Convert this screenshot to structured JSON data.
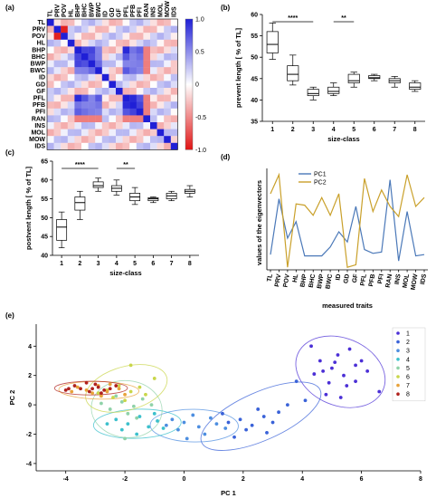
{
  "chart_data": [
    {
      "panel": "(a)",
      "type": "heatmap",
      "labels": [
        "TL",
        "PRV",
        "POV",
        "HL",
        "BHP",
        "BHC",
        "BWP",
        "BWC",
        "ID",
        "GD",
        "GF",
        "PFL",
        "PFB",
        "PFI",
        "RAN",
        "INS",
        "MOL",
        "MOW",
        "IDS"
      ],
      "colorbar_ticks": [
        "1.0",
        "0.5",
        "0",
        "-0.5",
        "-1.0"
      ],
      "colorbar_range": [
        -1.0,
        1.0
      ],
      "colors": {
        "positive": "#1f1fd6",
        "zero": "#ffffff",
        "negative": "#e01414"
      }
    },
    {
      "panel": "(b)",
      "type": "boxplot",
      "xlabel": "size-class",
      "ylabel": "prevent length [ % of TL]",
      "categories": [
        "1",
        "2",
        "3",
        "4",
        "5",
        "6",
        "7",
        "8"
      ],
      "yticks": [
        "35",
        "40",
        "45",
        "50",
        "55",
        "60"
      ],
      "ylim": [
        35,
        60
      ],
      "boxes": [
        {
          "min": 49.5,
          "q1": 51,
          "median": 53,
          "q3": 56,
          "max": 58
        },
        {
          "min": 43.5,
          "q1": 44.5,
          "median": 46,
          "q3": 48,
          "max": 50.5
        },
        {
          "min": 40,
          "q1": 41,
          "median": 41.5,
          "q3": 42.5,
          "max": 43
        },
        {
          "min": 41,
          "q1": 41.5,
          "median": 42,
          "q3": 43,
          "max": 44
        },
        {
          "min": 43,
          "q1": 44,
          "median": 44.5,
          "q3": 46,
          "max": 46.5
        },
        {
          "min": 44.5,
          "q1": 45,
          "median": 45.2,
          "q3": 45.7,
          "max": 46
        },
        {
          "min": 43,
          "q1": 44,
          "median": 44.5,
          "q3": 45,
          "max": 45.5
        },
        {
          "min": 42,
          "q1": 42.5,
          "median": 43,
          "q3": 44,
          "max": 44.5
        }
      ],
      "significance": [
        {
          "from": "1",
          "to": "3",
          "label": "****"
        },
        {
          "from": "4",
          "to": "5",
          "label": "**"
        }
      ]
    },
    {
      "panel": "(c)",
      "type": "boxplot",
      "xlabel": "size-class",
      "ylabel": "postvent length [ % of TL]",
      "categories": [
        "1",
        "2",
        "3",
        "4",
        "5",
        "6",
        "7",
        "8"
      ],
      "yticks": [
        "40",
        "45",
        "50",
        "55",
        "60",
        "65"
      ],
      "ylim": [
        40,
        65
      ],
      "boxes": [
        {
          "min": 42,
          "q1": 44,
          "median": 47.5,
          "q3": 49.5,
          "max": 51.5
        },
        {
          "min": 49.5,
          "q1": 52,
          "median": 54,
          "q3": 55.5,
          "max": 57
        },
        {
          "min": 57,
          "q1": 58,
          "median": 58.5,
          "q3": 59.5,
          "max": 60.5
        },
        {
          "min": 56,
          "q1": 57,
          "median": 57.8,
          "q3": 58.5,
          "max": 60
        },
        {
          "min": 53.5,
          "q1": 54.5,
          "median": 55.5,
          "q3": 56.5,
          "max": 58
        },
        {
          "min": 54,
          "q1": 54.5,
          "median": 55,
          "q3": 55.3,
          "max": 55.5
        },
        {
          "min": 54.5,
          "q1": 55,
          "median": 55.8,
          "q3": 56.5,
          "max": 57
        },
        {
          "min": 55.5,
          "q1": 56.5,
          "median": 57,
          "q3": 57.5,
          "max": 58.5
        }
      ],
      "significance": [
        {
          "from": "1",
          "to": "3",
          "label": "****"
        },
        {
          "from": "4",
          "to": "5",
          "label": "**"
        }
      ]
    },
    {
      "panel": "(d)",
      "type": "line",
      "xlabel": "measured traits",
      "ylabel": "values of the eigenvectors",
      "categories": [
        "TL",
        "PRV",
        "POV",
        "HL",
        "BHP",
        "BHC",
        "BWP",
        "BWC",
        "ID",
        "GD",
        "GF",
        "PFL",
        "PFB",
        "PFI",
        "RAN",
        "INS",
        "MOL",
        "MOW",
        "IDS"
      ],
      "ylim": [
        -0.4,
        0.4
      ],
      "series": [
        {
          "name": "PC1",
          "color": "#4a78b8",
          "values": [
            -0.28,
            0.16,
            -0.15,
            -0.02,
            -0.29,
            -0.29,
            -0.29,
            -0.22,
            -0.1,
            -0.18,
            0.1,
            -0.24,
            -0.27,
            -0.26,
            0.31,
            -0.33,
            0.06,
            -0.29,
            -0.28
          ]
        },
        {
          "name": "PC2",
          "color": "#c9a02a",
          "values": [
            0.2,
            0.35,
            -0.38,
            0.12,
            0.11,
            0.03,
            0.17,
            0.03,
            0.2,
            -0.38,
            -0.36,
            0.32,
            0.06,
            0.23,
            0.1,
            0.02,
            0.35,
            0.1,
            0.17
          ]
        }
      ]
    },
    {
      "panel": "(e)",
      "type": "scatter",
      "xlabel": "PC 1",
      "ylabel": "PC 2",
      "xticks": [
        "-4",
        "-2",
        "0",
        "2",
        "4",
        "6",
        "8"
      ],
      "yticks": [
        "-4",
        "-2",
        "0",
        "2",
        "4"
      ],
      "xlim": [
        -5,
        8
      ],
      "ylim": [
        -4.5,
        5.5
      ],
      "legend_position": "top-right",
      "series": [
        {
          "name": "1",
          "color": "#4b2fd6",
          "points": [
            [
              4.4,
              2.1
            ],
            [
              4.7,
              2.3
            ],
            [
              5.0,
              2.5
            ],
            [
              5.4,
              2.0
            ],
            [
              5.8,
              2.7
            ],
            [
              4.6,
              3.0
            ],
            [
              5.2,
              3.4
            ],
            [
              5.8,
              1.6
            ],
            [
              6.0,
              3.0
            ],
            [
              4.9,
              1.5
            ],
            [
              5.5,
              1.3
            ],
            [
              4.3,
              4.0
            ],
            [
              6.2,
              2.3
            ],
            [
              5.1,
              2.9
            ],
            [
              5.6,
              3.8
            ],
            [
              4.8,
              0.7
            ],
            [
              5.3,
              0.5
            ],
            [
              6.6,
              0.9
            ]
          ]
        },
        {
          "name": "2",
          "color": "#3a62d8",
          "points": [
            [
              1.5,
              -1.2
            ],
            [
              1.9,
              -1.0
            ],
            [
              2.3,
              -1.4
            ],
            [
              2.7,
              -0.8
            ],
            [
              3.2,
              -0.5
            ],
            [
              3.5,
              0.0
            ],
            [
              2.1,
              -1.7
            ],
            [
              1.7,
              -2.2
            ],
            [
              3.8,
              1.6
            ],
            [
              2.8,
              -1.9
            ],
            [
              4.1,
              0.3
            ],
            [
              1.3,
              -0.6
            ],
            [
              3.0,
              -1.2
            ],
            [
              2.5,
              -0.3
            ]
          ]
        },
        {
          "name": "3",
          "color": "#4d8ee0",
          "points": [
            [
              -0.4,
              -1.0
            ],
            [
              0.0,
              -1.2
            ],
            [
              0.5,
              -1.5
            ],
            [
              0.9,
              -0.9
            ],
            [
              1.1,
              -1.3
            ],
            [
              -0.2,
              -1.7
            ],
            [
              0.3,
              -0.7
            ],
            [
              0.7,
              -2.0
            ],
            [
              -0.6,
              -1.4
            ],
            [
              1.4,
              -1.6
            ],
            [
              0.1,
              -2.3
            ]
          ]
        },
        {
          "name": "4",
          "color": "#3cc0cc",
          "points": [
            [
              -2.3,
              -1.0
            ],
            [
              -1.9,
              -1.3
            ],
            [
              -1.5,
              -0.8
            ],
            [
              -1.2,
              -1.5
            ],
            [
              -0.9,
              -1.1
            ],
            [
              -2.1,
              -1.7
            ],
            [
              -1.6,
              -2.0
            ],
            [
              -0.7,
              -1.6
            ],
            [
              -2.6,
              -1.3
            ],
            [
              -1.0,
              -0.6
            ]
          ]
        },
        {
          "name": "5",
          "color": "#8fd2a8",
          "points": [
            [
              -2.5,
              -0.3
            ],
            [
              -2.1,
              0.2
            ],
            [
              -1.7,
              -0.1
            ],
            [
              -1.4,
              0.4
            ],
            [
              -1.9,
              -0.6
            ],
            [
              -2.3,
              0.6
            ],
            [
              -1.1,
              0.0
            ],
            [
              -2.8,
              0.1
            ],
            [
              -1.6,
              -0.9
            ],
            [
              -2.0,
              -2.3
            ]
          ]
        },
        {
          "name": "6",
          "color": "#c9d64a",
          "points": [
            [
              -2.6,
              1.0
            ],
            [
              -2.2,
              1.3
            ],
            [
              -1.8,
              0.9
            ],
            [
              -2.4,
              0.5
            ],
            [
              -1.5,
              1.2
            ],
            [
              -2.9,
              0.8
            ],
            [
              -2.0,
              0.3
            ],
            [
              -1.3,
              0.7
            ],
            [
              -1.8,
              2.7
            ],
            [
              -1.0,
              1.8
            ]
          ]
        },
        {
          "name": "7",
          "color": "#e8a23a",
          "points": [
            [
              -3.3,
              1.0
            ],
            [
              -2.9,
              1.3
            ],
            [
              -2.6,
              0.9
            ],
            [
              -3.6,
              1.2
            ],
            [
              -2.8,
              0.6
            ],
            [
              -2.2,
              1.1
            ],
            [
              -3.1,
              0.8
            ],
            [
              -2.5,
              1.4
            ],
            [
              -3.8,
              0.9
            ],
            [
              -2.0,
              0.7
            ]
          ]
        },
        {
          "name": "8",
          "color": "#b0221e",
          "points": [
            [
              -3.5,
              1.1
            ],
            [
              -3.2,
              0.9
            ],
            [
              -2.9,
              1.2
            ],
            [
              -2.7,
              1.0
            ],
            [
              -3.0,
              1.4
            ],
            [
              -3.7,
              1.3
            ],
            [
              -2.5,
              1.1
            ],
            [
              -3.3,
              1.5
            ],
            [
              -2.8,
              0.8
            ],
            [
              -3.9,
              1.1
            ],
            [
              -2.3,
              1.3
            ],
            [
              -3.1,
              1.1
            ],
            [
              -4.0,
              1.0
            ]
          ]
        }
      ]
    }
  ]
}
